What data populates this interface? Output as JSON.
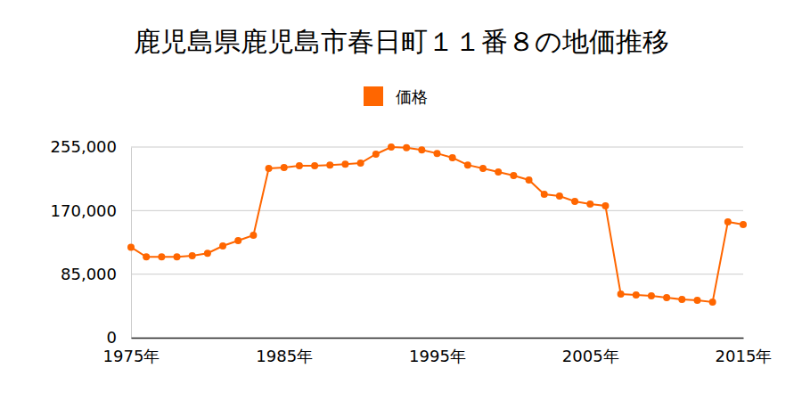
{
  "chart_data": {
    "type": "line",
    "title": "鹿児島県鹿児島市春日町１１番８の地価推移",
    "x": [
      1975,
      1976,
      1977,
      1978,
      1979,
      1980,
      1981,
      1982,
      1983,
      1984,
      1985,
      1986,
      1987,
      1988,
      1989,
      1990,
      1991,
      1992,
      1993,
      1994,
      1995,
      1996,
      1997,
      1998,
      1999,
      2000,
      2001,
      2002,
      2003,
      2004,
      2005,
      2006,
      2007,
      2008,
      2009,
      2010,
      2011,
      2012,
      2013,
      2014,
      2015
    ],
    "series": [
      {
        "name": "価格",
        "color": "#ff6600",
        "marker": "circle",
        "values": [
          121000,
          108000,
          108000,
          108000,
          109600,
          113000,
          122700,
          129900,
          137000,
          226400,
          227600,
          230000,
          230000,
          231000,
          232000,
          233500,
          245500,
          255000,
          254000,
          251000,
          246500,
          240700,
          231000,
          226400,
          221600,
          216900,
          211000,
          191800,
          189500,
          182300,
          178700,
          176400,
          58400,
          57200,
          56000,
          53600,
          51200,
          50000,
          47700,
          154900,
          151300
        ]
      }
    ],
    "xlim": [
      1975,
      2015
    ],
    "xticks": [
      {
        "value": 1975,
        "label": "1975年"
      },
      {
        "value": 1985,
        "label": "1985年"
      },
      {
        "value": 1995,
        "label": "1995年"
      },
      {
        "value": 2005,
        "label": "2005年"
      },
      {
        "value": 2015,
        "label": "2015年"
      }
    ],
    "ylim": [
      0,
      255000
    ],
    "yticks": [
      0,
      {
        "value": 85000,
        "label": "85,000"
      },
      {
        "value": 170000,
        "label": "170,000"
      },
      {
        "value": 255000,
        "label": "255,000"
      }
    ],
    "grid": true,
    "legend": "top"
  }
}
